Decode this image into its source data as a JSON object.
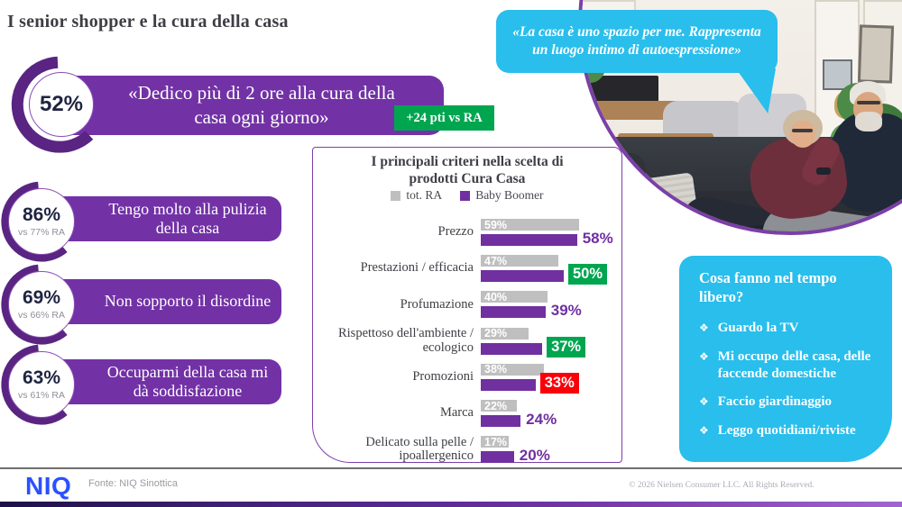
{
  "slide": {
    "title": "I senior shopper e la cura della casa",
    "hero": {
      "pct": "52%",
      "quote": "«Dedico più di 2 ore alla cura della casa ogni giorno»",
      "badge": "+24 pti vs RA"
    },
    "stats": [
      {
        "pct": "86%",
        "vs": "vs 77% RA",
        "label": "Tengo molto alla pulizia della casa"
      },
      {
        "pct": "69%",
        "vs": "vs 66% RA",
        "label": "Non sopporto il disordine"
      },
      {
        "pct": "63%",
        "vs": "vs 61% RA",
        "label": "Occuparmi della casa mi dà soddisfazione"
      }
    ],
    "quote_bubble": "«La casa è uno spazio per me. Rappresenta un luogo intimo di autoespressione»",
    "free_time": {
      "title": "Cosa fanno nel tempo libero?",
      "bullet": "❖",
      "items": [
        "Guardo la TV",
        "Mi occupo delle casa, delle faccende domestiche",
        "Faccio giardinaggio",
        "Leggo quotidiani/riviste"
      ]
    },
    "footer": {
      "logo": "NIQ",
      "source": "Fonte: NIQ Sinottica",
      "copyright": "© 2026 Nielsen Consumer LLC. All Rights Reserved."
    }
  },
  "chart_data": {
    "type": "bar",
    "orientation": "horizontal",
    "title": "I principali criteri nella scelta di prodotti Cura Casa",
    "legend_position": "top",
    "categories": [
      "Prezzo",
      "Prestazioni / efficacia",
      "Profumazione",
      "Rispettoso dell'ambiente / ecologico",
      "Promozioni",
      "Marca",
      "Delicato sulla pelle / ipoallergenico"
    ],
    "series": [
      {
        "name": "tot. RA",
        "values": [
          59,
          47,
          40,
          29,
          38,
          22,
          17
        ]
      },
      {
        "name": "Baby Boomer",
        "values": [
          58,
          50,
          39,
          37,
          33,
          24,
          20
        ]
      }
    ],
    "value_suffix": "%",
    "highlights": [
      null,
      "green",
      null,
      "green",
      "red",
      null,
      null
    ],
    "xlim": [
      0,
      65
    ],
    "colors": {
      "tot_RA": "#BFBFBF",
      "baby_boomer": "#7030A0",
      "positive_badge": "#00A550",
      "negative_badge": "#FA0009",
      "accent_purple": "#7232A6",
      "accent_blue": "#29BEEC"
    }
  }
}
